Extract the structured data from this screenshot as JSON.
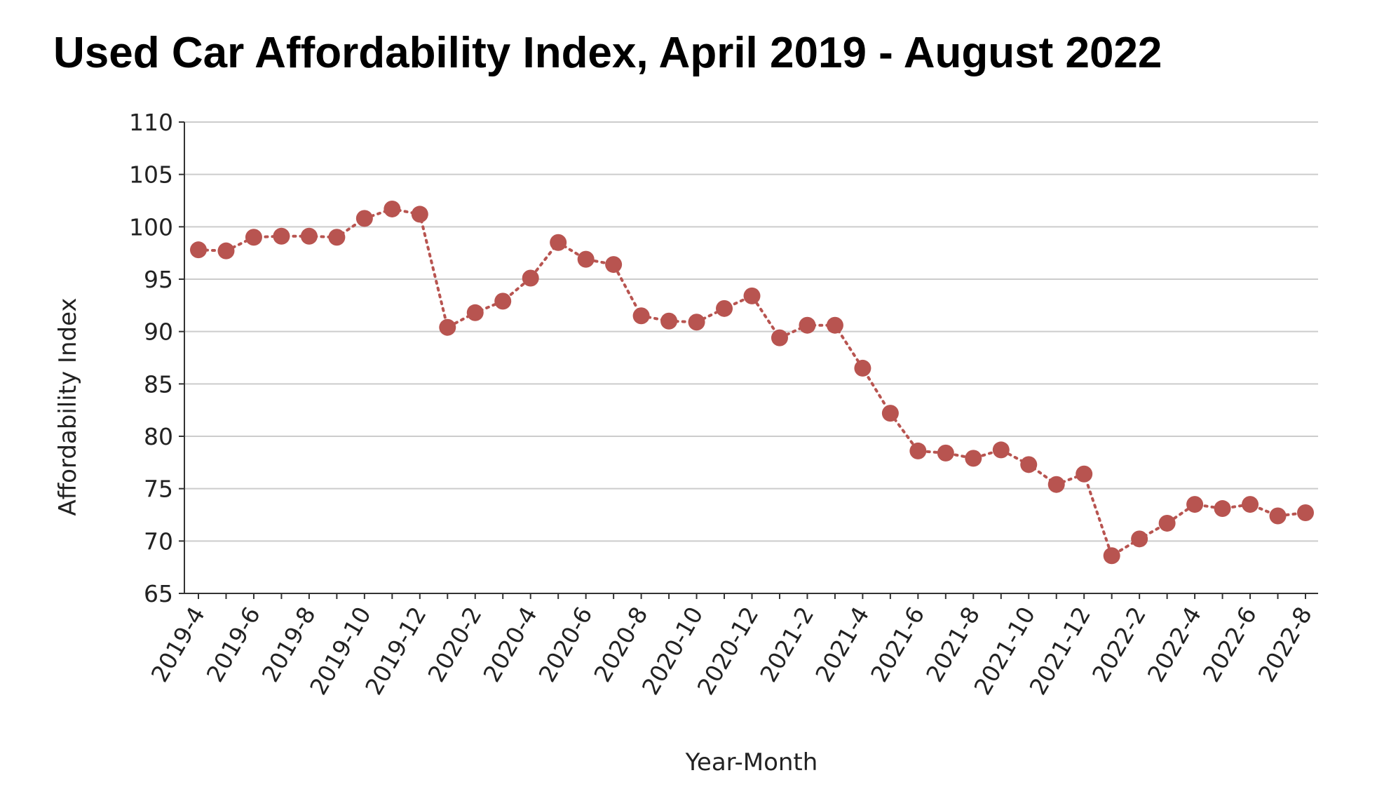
{
  "chart_data": {
    "type": "line",
    "title": "Used Car Affordability Index, April 2019 - August 2022",
    "xlabel": "Year-Month",
    "ylabel": "Affordability Index",
    "ylim": [
      65,
      110
    ],
    "y_ticks": [
      65,
      70,
      75,
      80,
      85,
      90,
      95,
      100,
      105,
      110
    ],
    "grid": "horizontal",
    "line_style": "dotted",
    "marker": "circle",
    "series_color": "#b85450",
    "x": [
      "2019-4",
      "2019-5",
      "2019-6",
      "2019-7",
      "2019-8",
      "2019-9",
      "2019-10",
      "2019-11",
      "2019-12",
      "2020-1",
      "2020-2",
      "2020-3",
      "2020-4",
      "2020-5",
      "2020-6",
      "2020-7",
      "2020-8",
      "2020-9",
      "2020-10",
      "2020-11",
      "2020-12",
      "2021-1",
      "2021-2",
      "2021-3",
      "2021-4",
      "2021-5",
      "2021-6",
      "2021-7",
      "2021-8",
      "2021-9",
      "2021-10",
      "2021-11",
      "2021-12",
      "2022-1",
      "2022-2",
      "2022-3",
      "2022-4",
      "2022-5",
      "2022-6",
      "2022-7",
      "2022-8"
    ],
    "x_tick_labels": [
      "2019-4",
      "2019-6",
      "2019-8",
      "2019-10",
      "2019-12",
      "2020-2",
      "2020-4",
      "2020-6",
      "2020-8",
      "2020-10",
      "2020-12",
      "2021-2",
      "2021-4",
      "2021-6",
      "2021-8",
      "2021-10",
      "2021-12",
      "2022-2",
      "2022-4",
      "2022-6",
      "2022-8"
    ],
    "series": [
      {
        "values": [
          97.8,
          97.7,
          99.0,
          99.1,
          99.1,
          99.0,
          100.8,
          101.7,
          101.2,
          90.4,
          91.8,
          92.9,
          95.1,
          98.5,
          96.9,
          96.4,
          91.5,
          91.0,
          90.9,
          92.2,
          93.4,
          89.4,
          90.6,
          90.6,
          86.5,
          82.2,
          78.6,
          78.4,
          77.9,
          78.7,
          77.3,
          75.4,
          76.4,
          68.6,
          70.2,
          71.7,
          73.5,
          73.1,
          73.5,
          72.4,
          72.7
        ]
      }
    ]
  }
}
